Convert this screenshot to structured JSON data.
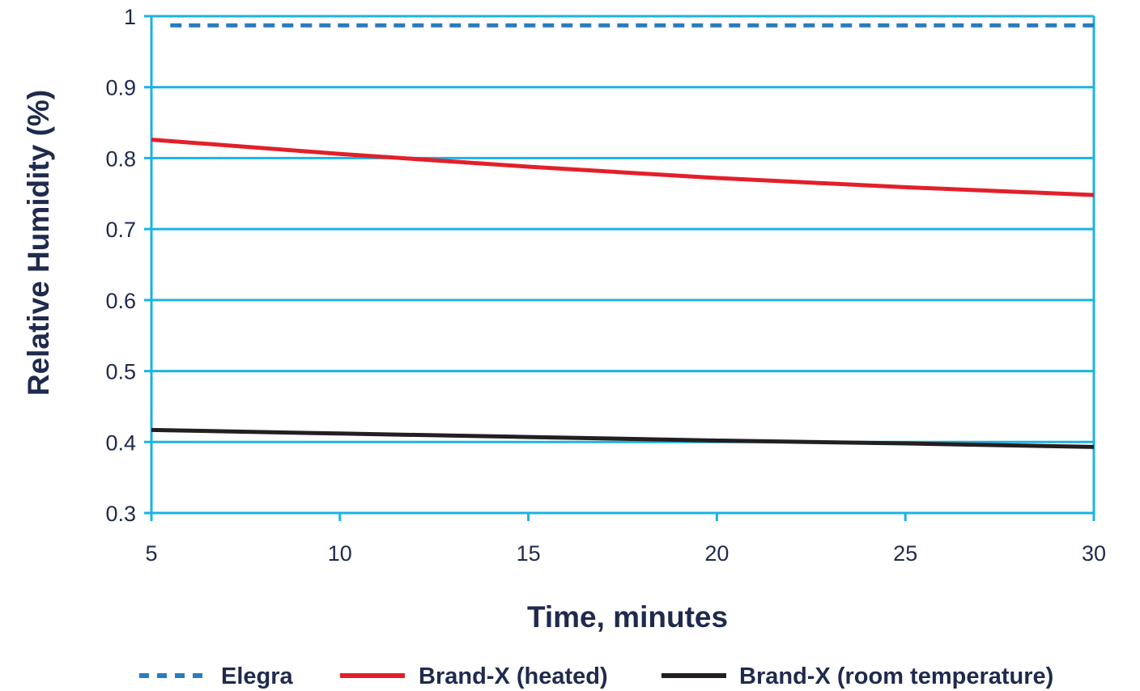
{
  "chart_data": {
    "type": "line",
    "xlabel": "Time, minutes",
    "ylabel": "Relative Humidity (%)",
    "xlim": [
      5,
      30
    ],
    "ylim": [
      0.3,
      1
    ],
    "xticks": [
      5,
      10,
      15,
      20,
      25,
      30
    ],
    "yticks": [
      0.3,
      0.4,
      0.5,
      0.6,
      0.7,
      0.8,
      0.9,
      1
    ],
    "ytick_labels": [
      "0.3",
      "0.4",
      "0.5",
      "0.6",
      "0.7",
      "0.8",
      "0.9",
      "1"
    ],
    "grid": true,
    "legend_position": "bottom",
    "series": [
      {
        "name": "Elegra",
        "color": "#2a7bc0",
        "style": "dashed",
        "x": [
          5.5,
          30
        ],
        "y": [
          0.987,
          0.987
        ]
      },
      {
        "name": "Brand-X (heated)",
        "color": "#e2202a",
        "style": "solid",
        "x": [
          5,
          10,
          15,
          20,
          25,
          30
        ],
        "y": [
          0.826,
          0.806,
          0.788,
          0.772,
          0.759,
          0.748
        ]
      },
      {
        "name": "Brand-X (room temperature)",
        "color": "#231f20",
        "style": "solid",
        "x": [
          5,
          10,
          15,
          20,
          25,
          30
        ],
        "y": [
          0.417,
          0.412,
          0.407,
          0.402,
          0.398,
          0.393
        ]
      }
    ],
    "colors": {
      "grid": "#1bb3e3",
      "text": "#1f2a4d"
    }
  }
}
